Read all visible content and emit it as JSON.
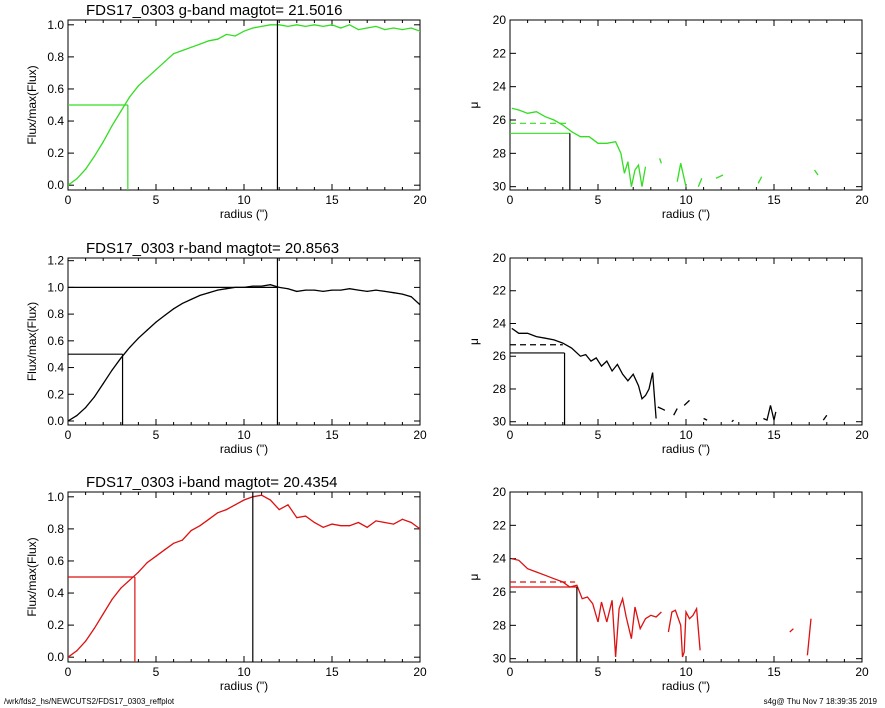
{
  "colors": {
    "g": "#33dd22",
    "r": "#000000",
    "i": "#dd1111",
    "axes": "#000000"
  },
  "footer": {
    "left": "/wrk/fds2_hs/NEWCUTS2/FDS17_0303_reffplot",
    "right": "s4g@  Thu Nov  7 18:39:35 2019"
  },
  "chart_data": [
    {
      "type": "line",
      "title": "FDS17_0303 g-band  magtot=     21.5016",
      "xlabel": "radius (\")",
      "ylabel": "Flux/max(Flux)",
      "xlim": [
        0,
        20
      ],
      "ylim": [
        -0.03,
        1.03
      ],
      "xticks": [
        "0",
        "5",
        "10",
        "15",
        "20"
      ],
      "yticks": [
        "0.0",
        "0.2",
        "0.4",
        "0.6",
        "0.8",
        "1.0"
      ],
      "ytick_values": [
        0,
        0.2,
        0.4,
        0.6,
        0.8,
        1.0
      ],
      "color": "g",
      "series": [
        {
          "x": [
            0,
            0.5,
            1,
            1.5,
            2,
            2.5,
            3,
            3.5,
            4,
            4.5,
            5,
            5.5,
            6,
            6.5,
            7,
            7.5,
            8,
            8.5,
            9,
            9.5,
            10,
            10.5,
            11,
            11.5,
            12,
            12.5,
            13,
            13.5,
            14,
            14.5,
            15,
            15.5,
            16,
            16.5,
            17,
            17.5,
            18,
            18.5,
            19,
            19.5,
            20
          ],
          "y": [
            0,
            0.04,
            0.1,
            0.18,
            0.27,
            0.37,
            0.46,
            0.55,
            0.62,
            0.67,
            0.72,
            0.77,
            0.82,
            0.84,
            0.86,
            0.88,
            0.9,
            0.91,
            0.94,
            0.93,
            0.96,
            0.98,
            0.99,
            1.0,
            1.0,
            0.99,
            1.0,
            0.99,
            1.0,
            0.99,
            1.0,
            0.98,
            1.0,
            0.97,
            0.98,
            0.99,
            0.97,
            0.98,
            0.97,
            0.98,
            0.96
          ]
        }
      ],
      "half_light": {
        "x": 3.4,
        "y": 0.5
      },
      "vline_x": 11.9
    },
    {
      "type": "line",
      "xlabel": "radius (\")",
      "ylabel": "μ",
      "xlim": [
        0,
        20
      ],
      "ylim": [
        30.2,
        20
      ],
      "y_inverted": true,
      "xticks": [
        "0",
        "5",
        "10",
        "15",
        "20"
      ],
      "yticks": [
        "20",
        "22",
        "24",
        "26",
        "28",
        "30"
      ],
      "ytick_values": [
        20,
        22,
        24,
        26,
        28,
        30
      ],
      "color": "g",
      "segments": [
        [
          [
            0.1,
            25.3
          ],
          [
            0.5,
            25.4
          ],
          [
            1.0,
            25.6
          ],
          [
            1.5,
            25.5
          ],
          [
            2.0,
            25.8
          ],
          [
            2.5,
            26.0
          ],
          [
            3.0,
            26.3
          ],
          [
            3.5,
            26.7
          ],
          [
            4.0,
            27.0
          ],
          [
            4.5,
            27.0
          ],
          [
            5.0,
            27.4
          ],
          [
            5.5,
            27.4
          ],
          [
            6.0,
            27.3
          ],
          [
            6.3,
            28.0
          ],
          [
            6.5,
            29.2
          ],
          [
            6.7,
            28.5
          ],
          [
            6.9,
            30.0
          ],
          [
            7.1,
            29.0
          ],
          [
            7.3,
            28.7
          ],
          [
            7.5,
            30.0
          ],
          [
            7.7,
            28.8
          ]
        ],
        [
          [
            8.5,
            28.3
          ],
          [
            8.6,
            28.6
          ]
        ],
        [
          [
            9.5,
            29.7
          ],
          [
            9.7,
            28.6
          ],
          [
            10.0,
            30.0
          ]
        ],
        [
          [
            10.7,
            30.0
          ],
          [
            10.9,
            29.5
          ]
        ],
        [
          [
            11.7,
            29.5
          ],
          [
            12.1,
            29.3
          ]
        ],
        [
          [
            14.1,
            29.8
          ],
          [
            14.3,
            29.4
          ]
        ],
        [
          [
            17.3,
            29.0
          ],
          [
            17.5,
            29.3
          ]
        ]
      ],
      "dashed_y": 26.2,
      "dashed_xmax": 3.3,
      "reff": {
        "x": 3.4,
        "y": 26.8
      }
    },
    {
      "type": "line",
      "title": "FDS17_0303 r-band  magtot=     20.8563",
      "xlabel": "radius (\")",
      "ylabel": "Flux/max(Flux)",
      "xlim": [
        0,
        20
      ],
      "ylim": [
        -0.03,
        1.22
      ],
      "xticks": [
        "0",
        "5",
        "10",
        "15",
        "20"
      ],
      "yticks": [
        "0.0",
        "0.2",
        "0.4",
        "0.6",
        "0.8",
        "1.0",
        "1.2"
      ],
      "ytick_values": [
        0,
        0.2,
        0.4,
        0.6,
        0.8,
        1.0,
        1.2
      ],
      "color": "r",
      "series": [
        {
          "x": [
            0,
            0.5,
            1,
            1.5,
            2,
            2.5,
            3,
            3.5,
            4,
            4.5,
            5,
            5.5,
            6,
            6.5,
            7,
            7.5,
            8,
            8.5,
            9,
            9.5,
            10,
            10.5,
            11,
            11.5,
            12,
            12.5,
            13,
            13.5,
            14,
            14.5,
            15,
            15.5,
            16,
            16.5,
            17,
            17.5,
            18,
            18.5,
            19,
            19.5,
            20
          ],
          "y": [
            0,
            0.04,
            0.1,
            0.18,
            0.28,
            0.38,
            0.47,
            0.55,
            0.62,
            0.68,
            0.74,
            0.79,
            0.84,
            0.88,
            0.91,
            0.94,
            0.96,
            0.98,
            0.99,
            1.0,
            1.0,
            1.01,
            1.01,
            1.02,
            1.0,
            0.99,
            0.97,
            0.98,
            0.98,
            0.97,
            0.98,
            0.98,
            0.99,
            0.98,
            0.97,
            0.98,
            0.97,
            0.96,
            0.95,
            0.93,
            0.87
          ]
        }
      ],
      "half_light": {
        "x": 3.1,
        "y": 0.5
      },
      "vline_x": 11.9,
      "hline_y": 1.0
    },
    {
      "type": "line",
      "xlabel": "radius (\")",
      "ylabel": "μ",
      "xlim": [
        0,
        20
      ],
      "ylim": [
        30.2,
        20
      ],
      "y_inverted": true,
      "xticks": [
        "0",
        "5",
        "10",
        "15",
        "20"
      ],
      "yticks": [
        "20",
        "22",
        "24",
        "26",
        "28",
        "30"
      ],
      "ytick_values": [
        20,
        22,
        24,
        26,
        28,
        30
      ],
      "color": "r",
      "segments": [
        [
          [
            0.1,
            24.3
          ],
          [
            0.5,
            24.6
          ],
          [
            1.0,
            24.6
          ],
          [
            1.5,
            24.8
          ],
          [
            2.0,
            24.9
          ],
          [
            2.5,
            25.0
          ],
          [
            3.0,
            25.2
          ],
          [
            3.5,
            25.5
          ],
          [
            4.0,
            26.0
          ],
          [
            4.3,
            25.9
          ],
          [
            4.6,
            26.3
          ],
          [
            4.9,
            26.1
          ],
          [
            5.2,
            26.6
          ],
          [
            5.5,
            26.3
          ],
          [
            5.8,
            26.9
          ],
          [
            6.1,
            26.5
          ],
          [
            6.4,
            27.1
          ],
          [
            6.7,
            27.5
          ],
          [
            7.0,
            27.1
          ],
          [
            7.3,
            27.8
          ],
          [
            7.5,
            28.6
          ],
          [
            7.7,
            28.4
          ],
          [
            7.9,
            28.0
          ],
          [
            8.1,
            27.0
          ],
          [
            8.3,
            29.8
          ]
        ],
        [
          [
            8.4,
            29.1
          ],
          [
            8.6,
            29.2
          ],
          [
            8.8,
            29.3
          ]
        ],
        [
          [
            9.3,
            29.6
          ],
          [
            9.5,
            29.2
          ]
        ],
        [
          [
            9.9,
            29.0
          ],
          [
            10.2,
            28.7
          ]
        ],
        [
          [
            11.0,
            29.8
          ],
          [
            11.2,
            29.9
          ]
        ],
        [
          [
            12.6,
            30.0
          ],
          [
            12.7,
            29.9
          ]
        ],
        [
          [
            14.4,
            29.8
          ],
          [
            14.6,
            29.9
          ],
          [
            14.8,
            29.0
          ],
          [
            15.0,
            29.9
          ],
          [
            15.1,
            29.4
          ]
        ],
        [
          [
            17.8,
            29.9
          ],
          [
            18.0,
            29.6
          ]
        ]
      ],
      "dashed_y": 25.3,
      "dashed_xmax": 3.0,
      "reff": {
        "x": 3.1,
        "y": 25.8
      }
    },
    {
      "type": "line",
      "title": "FDS17_0303 i-band  magtot=     20.4354",
      "xlabel": "radius (\")",
      "ylabel": "Flux/max(Flux)",
      "xlim": [
        0,
        20
      ],
      "ylim": [
        -0.03,
        1.03
      ],
      "xticks": [
        "0",
        "5",
        "10",
        "15",
        "20"
      ],
      "yticks": [
        "0.0",
        "0.2",
        "0.4",
        "0.6",
        "0.8",
        "1.0"
      ],
      "ytick_values": [
        0,
        0.2,
        0.4,
        0.6,
        0.8,
        1.0
      ],
      "color": "i",
      "series": [
        {
          "x": [
            0,
            0.5,
            1,
            1.5,
            2,
            2.5,
            3,
            3.5,
            4,
            4.5,
            5,
            5.5,
            6,
            6.5,
            7,
            7.5,
            8,
            8.5,
            9,
            9.5,
            10,
            10.5,
            11,
            11.5,
            12,
            12.5,
            13,
            13.5,
            14,
            14.5,
            15,
            15.5,
            16,
            16.5,
            17,
            17.5,
            18,
            18.5,
            19,
            19.5,
            20
          ],
          "y": [
            0,
            0.04,
            0.1,
            0.18,
            0.27,
            0.36,
            0.43,
            0.48,
            0.53,
            0.59,
            0.63,
            0.67,
            0.71,
            0.73,
            0.79,
            0.82,
            0.86,
            0.9,
            0.92,
            0.95,
            0.98,
            1.0,
            1.01,
            0.98,
            0.92,
            0.95,
            0.87,
            0.88,
            0.84,
            0.81,
            0.83,
            0.82,
            0.82,
            0.84,
            0.81,
            0.85,
            0.84,
            0.83,
            0.86,
            0.84,
            0.8
          ]
        }
      ],
      "half_light": {
        "x": 3.8,
        "y": 0.5
      },
      "vline_x": 10.5
    },
    {
      "type": "line",
      "xlabel": "radius (\")",
      "ylabel": "μ",
      "xlim": [
        0,
        20
      ],
      "ylim": [
        30.2,
        20
      ],
      "y_inverted": true,
      "xticks": [
        "0",
        "5",
        "10",
        "15",
        "20"
      ],
      "yticks": [
        "20",
        "22",
        "24",
        "26",
        "28",
        "30"
      ],
      "ytick_values": [
        20,
        22,
        24,
        26,
        28,
        30
      ],
      "color": "i",
      "segments": [
        [
          [
            0.1,
            24.0
          ],
          [
            0.5,
            24.1
          ],
          [
            1.0,
            24.6
          ],
          [
            1.5,
            24.8
          ],
          [
            2.0,
            25.0
          ],
          [
            2.5,
            25.2
          ],
          [
            3.0,
            25.4
          ],
          [
            3.4,
            25.7
          ],
          [
            3.8,
            25.6
          ],
          [
            4.1,
            26.4
          ],
          [
            4.4,
            26.3
          ],
          [
            4.7,
            26.7
          ],
          [
            5.0,
            27.8
          ],
          [
            5.2,
            26.6
          ],
          [
            5.5,
            27.8
          ],
          [
            5.8,
            26.5
          ],
          [
            6.0,
            29.9
          ],
          [
            6.2,
            27.0
          ],
          [
            6.4,
            26.4
          ],
          [
            6.6,
            27.5
          ],
          [
            6.9,
            28.8
          ],
          [
            7.1,
            26.9
          ],
          [
            7.4,
            28.2
          ],
          [
            7.7,
            27.6
          ],
          [
            8.0,
            27.4
          ],
          [
            8.3,
            27.5
          ],
          [
            8.6,
            27.2
          ]
        ],
        [
          [
            9.0,
            28.4
          ],
          [
            9.2,
            27.2
          ],
          [
            9.4,
            27.1
          ],
          [
            9.7,
            28.0
          ],
          [
            9.8,
            29.9
          ],
          [
            9.9,
            29.6
          ],
          [
            10.0,
            27.2
          ],
          [
            10.2,
            27.6
          ],
          [
            10.4,
            27.4
          ],
          [
            10.6,
            27.0
          ],
          [
            10.8,
            29.5
          ]
        ],
        [
          [
            15.9,
            28.4
          ],
          [
            16.1,
            28.2
          ]
        ],
        [
          [
            16.9,
            29.8
          ],
          [
            17.1,
            27.6
          ]
        ]
      ],
      "dashed_y": 25.4,
      "dashed_xmax": 3.7,
      "reff": {
        "x": 3.8,
        "y": 25.7
      }
    }
  ]
}
